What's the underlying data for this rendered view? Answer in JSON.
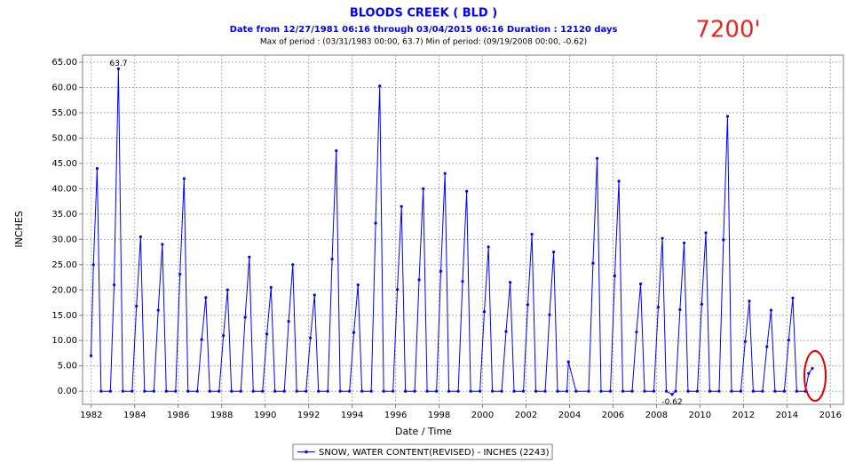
{
  "chart_data": {
    "type": "line",
    "title": "BLOODS CREEK ( BLD )",
    "subtitle": "Date from 12/27/1981 06:16 through 03/04/2015 06:16 Duration : 12120 days",
    "period_note": "Max of period : (03/31/1983 00:00, 63.7)  Min of period: (09/19/2008 00:00,  -0.62)",
    "elevation_note": "7200'",
    "xlabel": "Date / Time",
    "ylabel": "INCHES",
    "xlim": [
      1981.6,
      2016.6
    ],
    "xticks": [
      1982,
      1984,
      1986,
      1988,
      1990,
      1992,
      1994,
      1996,
      1998,
      2000,
      2002,
      2004,
      2006,
      2008,
      2010,
      2012,
      2014,
      2016
    ],
    "ylim": [
      -2.6,
      66.4
    ],
    "yticks": [
      {
        "value": 0,
        "label": "0.00"
      },
      {
        "value": 5,
        "label": "5.00"
      },
      {
        "value": 10,
        "label": "10.00"
      },
      {
        "value": 15,
        "label": "15.00"
      },
      {
        "value": 20,
        "label": "20.00"
      },
      {
        "value": 25,
        "label": "25.00"
      },
      {
        "value": 30,
        "label": "30.00"
      },
      {
        "value": 35,
        "label": "35.00"
      },
      {
        "value": 40,
        "label": "40.00"
      },
      {
        "value": 45,
        "label": "45.00"
      },
      {
        "value": 50,
        "label": "50.00"
      },
      {
        "value": 55,
        "label": "55.00"
      },
      {
        "value": 60,
        "label": "60.00"
      },
      {
        "value": 65,
        "label": "65.00"
      }
    ],
    "grid": true,
    "x": [
      1981.99,
      1982.1,
      1982.27,
      1982.45,
      1982.88,
      1983.05,
      1983.25,
      1983.45,
      1983.88,
      1984.08,
      1984.27,
      1984.45,
      1984.88,
      1985.08,
      1985.27,
      1985.45,
      1985.88,
      1986.08,
      1986.27,
      1986.45,
      1986.88,
      1987.08,
      1987.27,
      1987.45,
      1987.88,
      1988.08,
      1988.27,
      1988.45,
      1988.88,
      1989.08,
      1989.27,
      1989.45,
      1989.88,
      1990.08,
      1990.27,
      1990.45,
      1990.88,
      1991.08,
      1991.27,
      1991.45,
      1991.88,
      1992.08,
      1992.27,
      1992.45,
      1992.88,
      1993.08,
      1993.27,
      1993.45,
      1993.88,
      1994.08,
      1994.27,
      1994.45,
      1994.88,
      1995.08,
      1995.27,
      1995.45,
      1995.88,
      1996.08,
      1996.27,
      1996.45,
      1996.88,
      1997.08,
      1997.27,
      1997.45,
      1997.88,
      1998.08,
      1998.27,
      1998.45,
      1998.88,
      1999.08,
      1999.27,
      1999.45,
      1999.88,
      2000.08,
      2000.27,
      2000.45,
      2000.88,
      2001.08,
      2001.27,
      2001.45,
      2001.88,
      2002.08,
      2002.27,
      2002.45,
      2002.88,
      2003.08,
      2003.27,
      2003.45,
      2003.88,
      2003.95,
      2004.3,
      2004.88,
      2005.08,
      2005.27,
      2005.45,
      2005.88,
      2006.08,
      2006.27,
      2006.45,
      2006.88,
      2007.08,
      2007.27,
      2007.45,
      2007.88,
      2008.08,
      2008.27,
      2008.45,
      2008.72,
      2008.88,
      2009.08,
      2009.27,
      2009.45,
      2009.88,
      2010.08,
      2010.27,
      2010.45,
      2010.88,
      2011.08,
      2011.27,
      2011.45,
      2011.88,
      2012.08,
      2012.27,
      2012.45,
      2012.88,
      2013.08,
      2013.27,
      2013.45,
      2013.88,
      2014.08,
      2014.27,
      2014.45,
      2014.85,
      2015.0,
      2015.17
    ],
    "series": [
      {
        "name": "SNOW, WATER CONTENT(REVISED) - INCHES (2243)",
        "color": "#0000ff",
        "values": [
          7,
          25,
          44,
          0,
          0,
          21,
          63.7,
          0,
          0,
          16.8,
          30.5,
          0,
          0,
          16,
          29,
          0,
          0,
          23.1,
          42,
          0,
          0,
          10.2,
          18.5,
          0,
          0,
          11,
          20,
          0,
          0,
          14.6,
          26.5,
          0,
          0,
          11.3,
          20.5,
          0,
          0,
          13.8,
          25,
          0,
          0,
          10.5,
          19,
          0,
          0,
          26.1,
          47.5,
          0,
          0,
          11.6,
          21,
          0,
          0,
          33.2,
          60.3,
          0,
          0,
          20.1,
          36.5,
          0,
          0,
          22,
          40,
          0,
          0,
          23.7,
          43,
          0,
          0,
          21.7,
          39.5,
          0,
          0,
          15.7,
          28.5,
          0,
          0,
          11.8,
          21.5,
          0,
          0,
          17.1,
          31,
          0,
          0,
          15.1,
          27.5,
          0,
          0,
          5.8,
          0,
          0,
          25.3,
          46,
          0,
          0,
          22.8,
          41.5,
          0,
          0,
          11.7,
          21.2,
          0,
          0,
          16.6,
          30.2,
          0,
          -0.62,
          0,
          16.1,
          29.3,
          0,
          0,
          17.2,
          31.3,
          0,
          0,
          29.9,
          54.3,
          0,
          0,
          9.8,
          17.8,
          0,
          0,
          8.8,
          16,
          0,
          0,
          10.1,
          18.4,
          0,
          0,
          3.5,
          4.5
        ]
      }
    ],
    "annotations": [
      {
        "label": "63.7",
        "value": 63.7,
        "x": 1983.25
      },
      {
        "label": "-0.62",
        "value": -0.62,
        "x": 2008.72
      }
    ]
  }
}
